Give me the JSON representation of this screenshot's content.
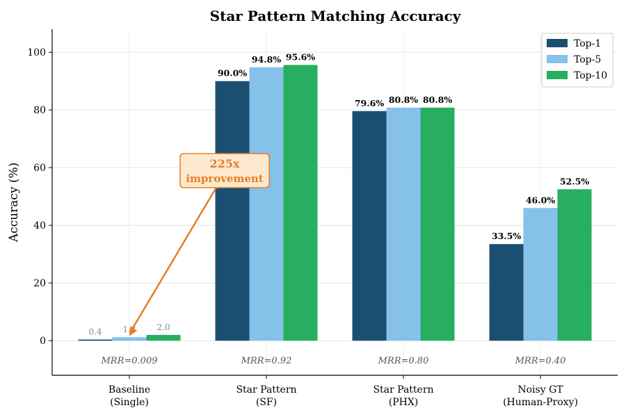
{
  "chart_data": {
    "type": "bar",
    "title": "Star Pattern Matching Accuracy",
    "ylabel": "Accuracy (%)",
    "xlabel": "",
    "ylim": [
      -12,
      108
    ],
    "yticks": [
      0,
      20,
      40,
      60,
      80,
      100
    ],
    "grid": true,
    "legend_position": "top-right",
    "categories": [
      [
        "Baseline",
        "(Single)"
      ],
      [
        "Star Pattern",
        "(SF)"
      ],
      [
        "Star Pattern",
        "(PHX)"
      ],
      [
        "Noisy GT",
        "(Human-Proxy)"
      ]
    ],
    "series": [
      {
        "name": "Top-1",
        "color": "#1b4f72",
        "values": [
          0.4,
          90.0,
          79.6,
          33.5
        ],
        "labels": [
          "0.4",
          "90.0%",
          "79.6%",
          "33.5%"
        ]
      },
      {
        "name": "Top-5",
        "color": "#85c1e9",
        "values": [
          1.2,
          94.8,
          80.8,
          46.0
        ],
        "labels": [
          "1.2",
          "94.8%",
          "80.8%",
          "46.0%"
        ]
      },
      {
        "name": "Top-10",
        "color": "#27ae60",
        "values": [
          2.0,
          95.6,
          80.8,
          52.5
        ],
        "labels": [
          "2.0",
          "95.6%",
          "80.8%",
          "52.5%"
        ]
      }
    ],
    "mrr_labels": [
      "MRR=0.009",
      "MRR=0.92",
      "MRR=0.80",
      "MRR=0.40"
    ],
    "annotation": {
      "lines": [
        "225x",
        "improvement"
      ],
      "color": "#e67e22",
      "fill": "#fde9d0",
      "points_to": {
        "category_index": 0,
        "series_index": 1
      }
    }
  }
}
